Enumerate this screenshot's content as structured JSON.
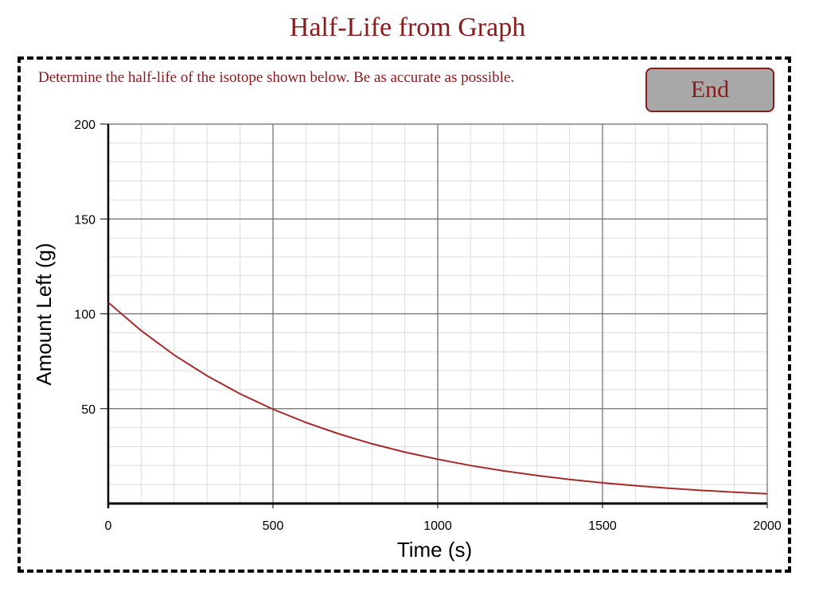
{
  "page": {
    "title": "Half-Life from Graph",
    "instruction": "Determine the half-life of the isotope shown below. Be as accurate as possible.",
    "end_button_label": "End"
  },
  "colors": {
    "accent": "#8b1a1a",
    "curve": "#a52a2a",
    "button_fill": "#a8a8a8",
    "major_grid": "#6b6b6b",
    "minor_grid": "#dcdcdc"
  },
  "chart_data": {
    "type": "line",
    "title": "",
    "xlabel": "Time (s)",
    "ylabel": "Amount Left (g)",
    "xlim": [
      0,
      2000
    ],
    "ylim": [
      0,
      200
    ],
    "x_ticks": [
      0,
      500,
      1000,
      1500,
      2000
    ],
    "y_ticks": [
      50,
      100,
      150,
      200
    ],
    "x_tick_labels": [
      "0",
      "500",
      "1000",
      "1500",
      "2000"
    ],
    "y_tick_labels": [
      "50",
      "100",
      "150",
      "200"
    ],
    "grid": true,
    "x_minor_step": 100,
    "y_minor_step": 10,
    "series": [
      {
        "x": [
          0,
          100,
          200,
          300,
          400,
          500,
          600,
          700,
          800,
          900,
          1000,
          1100,
          1200,
          1300,
          1400,
          1500,
          1600,
          1700,
          1800,
          1900,
          2000
        ],
        "y": [
          106,
          91.1,
          78.3,
          67.3,
          57.8,
          49.7,
          42.7,
          36.7,
          31.5,
          27.1,
          23.3,
          20.0,
          17.2,
          14.8,
          12.7,
          10.9,
          9.4,
          8.1,
          6.9,
          6.0,
          5.1
        ]
      }
    ]
  }
}
